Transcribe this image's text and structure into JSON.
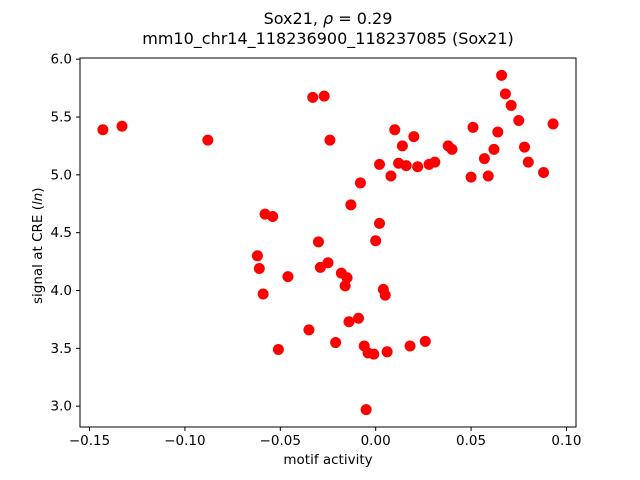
{
  "figure": {
    "title_line1": {
      "prefix": "Sox21, ",
      "rho": "ρ",
      "suffix": " = 0.29"
    },
    "title_line2": "mm10_chr14_118236900_118237085 (Sox21)",
    "xlabel": "motif activity",
    "ylabel": {
      "prefix": "signal at CRE (",
      "italic": "ln",
      "suffix": ")"
    }
  },
  "chart_data": {
    "type": "scatter",
    "title": "Sox21, ρ = 0.29\nmm10_chr14_118236900_118237085 (Sox21)",
    "xlabel": "motif activity",
    "ylabel": "signal at CRE (ln)",
    "legend": "none",
    "grid": false,
    "marker_color": "#ff0000",
    "marker_radius": 5.5,
    "xlim": [
      -0.155,
      0.105
    ],
    "ylim": [
      2.82,
      6.01
    ],
    "x_ticks": [
      -0.15,
      -0.1,
      -0.05,
      0.0,
      0.05,
      0.1
    ],
    "x_tick_labels": [
      "−0.15",
      "−0.10",
      "−0.05",
      "0.00",
      "0.05",
      "0.10"
    ],
    "y_ticks": [
      3.0,
      3.5,
      4.0,
      4.5,
      5.0,
      5.5,
      6.0
    ],
    "y_tick_labels": [
      "3.0",
      "3.5",
      "4.0",
      "4.5",
      "5.0",
      "5.5",
      "6.0"
    ],
    "points": [
      [
        -0.143,
        5.39
      ],
      [
        -0.133,
        5.42
      ],
      [
        -0.088,
        5.3
      ],
      [
        -0.062,
        4.3
      ],
      [
        -0.061,
        4.19
      ],
      [
        -0.059,
        3.97
      ],
      [
        -0.058,
        4.66
      ],
      [
        -0.054,
        4.64
      ],
      [
        -0.051,
        3.49
      ],
      [
        -0.046,
        4.12
      ],
      [
        -0.035,
        3.66
      ],
      [
        -0.033,
        5.67
      ],
      [
        -0.027,
        5.68
      ],
      [
        -0.03,
        4.42
      ],
      [
        -0.029,
        4.2
      ],
      [
        -0.025,
        4.24
      ],
      [
        -0.024,
        5.3
      ],
      [
        -0.021,
        3.55
      ],
      [
        -0.018,
        4.15
      ],
      [
        -0.016,
        4.04
      ],
      [
        -0.015,
        4.11
      ],
      [
        -0.014,
        3.73
      ],
      [
        -0.013,
        4.74
      ],
      [
        -0.009,
        3.76
      ],
      [
        -0.008,
        4.93
      ],
      [
        -0.006,
        3.52
      ],
      [
        -0.005,
        2.97
      ],
      [
        -0.004,
        3.46
      ],
      [
        -0.001,
        3.45
      ],
      [
        0.0,
        4.43
      ],
      [
        0.002,
        4.58
      ],
      [
        0.002,
        5.09
      ],
      [
        0.004,
        4.01
      ],
      [
        0.005,
        3.96
      ],
      [
        0.006,
        3.47
      ],
      [
        0.008,
        4.99
      ],
      [
        0.01,
        5.39
      ],
      [
        0.012,
        5.1
      ],
      [
        0.014,
        5.25
      ],
      [
        0.016,
        5.08
      ],
      [
        0.018,
        3.52
      ],
      [
        0.02,
        5.33
      ],
      [
        0.022,
        5.07
      ],
      [
        0.026,
        3.56
      ],
      [
        0.028,
        5.09
      ],
      [
        0.031,
        5.11
      ],
      [
        0.038,
        5.25
      ],
      [
        0.04,
        5.22
      ],
      [
        0.05,
        4.98
      ],
      [
        0.051,
        5.41
      ],
      [
        0.057,
        5.14
      ],
      [
        0.059,
        4.99
      ],
      [
        0.062,
        5.22
      ],
      [
        0.064,
        5.37
      ],
      [
        0.066,
        5.86
      ],
      [
        0.068,
        5.7
      ],
      [
        0.071,
        5.6
      ],
      [
        0.075,
        5.47
      ],
      [
        0.078,
        5.24
      ],
      [
        0.08,
        5.11
      ],
      [
        0.088,
        5.02
      ],
      [
        0.093,
        5.44
      ]
    ]
  }
}
